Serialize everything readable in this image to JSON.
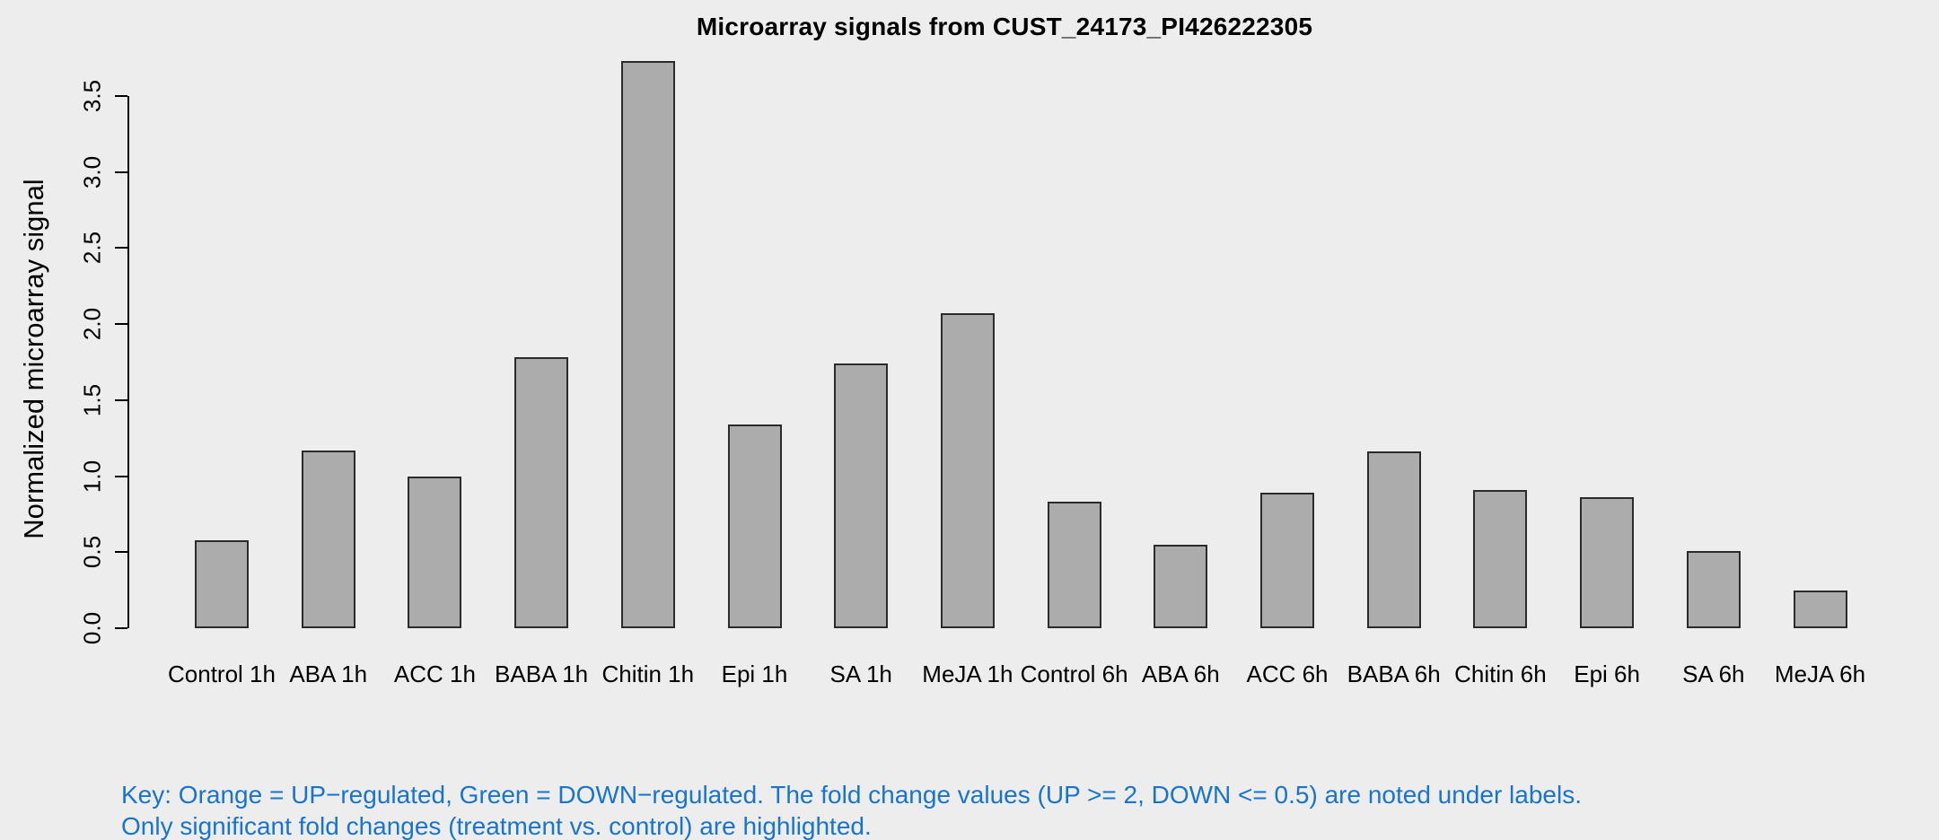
{
  "chart_data": {
    "type": "bar",
    "title": "Microarray signals from CUST_24173_PI426222305",
    "ylabel": "Normalized microarray signal",
    "xlabel": "",
    "categories": [
      "Control 1h",
      "ABA 1h",
      "ACC 1h",
      "BABA 1h",
      "Chitin 1h",
      "Epi 1h",
      "SA 1h",
      "MeJA 1h",
      "Control 6h",
      "ABA 6h",
      "ACC 6h",
      "BABA 6h",
      "Chitin 6h",
      "Epi 6h",
      "SA 6h",
      "MeJA 6h"
    ],
    "values": [
      0.58,
      1.17,
      1.0,
      1.78,
      3.73,
      1.34,
      1.74,
      2.07,
      0.83,
      0.55,
      0.89,
      1.16,
      0.91,
      0.86,
      0.51,
      0.25
    ],
    "yticks": [
      "0.0",
      "0.5",
      "1.0",
      "1.5",
      "2.0",
      "2.5",
      "3.0",
      "3.5"
    ],
    "ylim": [
      0,
      3.5
    ],
    "grid": false,
    "legend": "none",
    "bar_fill": "#ACACAC",
    "bar_border": "#2b2b2b",
    "background": "#EDEDED"
  },
  "annotations": {
    "key_line1": "Key: Orange = UP−regulated, Green = DOWN−regulated. The fold change values (UP >= 2, DOWN <= 0.5) are noted under labels.",
    "key_line2": "Only significant fold changes (treatment vs. control) are highlighted.",
    "key_color": "#1874CD"
  }
}
